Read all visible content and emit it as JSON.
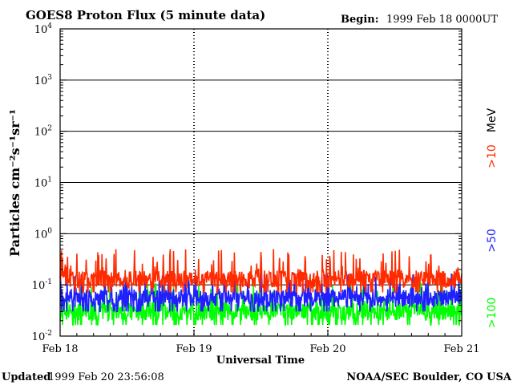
{
  "header": {
    "title": "GOES8 Proton Flux (5 minute data)",
    "begin_label": "Begin:",
    "begin_value": "1999 Feb 18 0000UT"
  },
  "footer": {
    "updated_label": "Updated",
    "updated_value": "1999 Feb 20 23:56:08",
    "credit": "NOAA/SEC Boulder, CO USA"
  },
  "chart_data": {
    "type": "line",
    "title": "GOES8 Proton Flux (5 minute data)",
    "xlabel": "Universal Time",
    "ylabel": "Particles cm⁻²s⁻¹sr⁻¹",
    "y_scale": "log",
    "ylim": [
      0.01,
      10000
    ],
    "y_ticks": [
      {
        "base": "10",
        "exp": "-2"
      },
      {
        "base": "10",
        "exp": "-1"
      },
      {
        "base": "10",
        "exp": "0"
      },
      {
        "base": "10",
        "exp": "1"
      },
      {
        "base": "10",
        "exp": "2"
      },
      {
        "base": "10",
        "exp": "3"
      },
      {
        "base": "10",
        "exp": "4"
      }
    ],
    "x_ticks": [
      "Feb 18",
      "Feb 19",
      "Feb 20",
      "Feb 21"
    ],
    "xlim_days": [
      0,
      3
    ],
    "grid": true,
    "legend_position": "right",
    "series": [
      {
        "name": ">10 MeV",
        "legend_label": ">10",
        "unit_label": "MeV",
        "color": "#ff2a00",
        "typical": 0.13,
        "spike_max": 0.5
      },
      {
        "name": ">50",
        "legend_label": ">50",
        "color": "#2020ff",
        "typical": 0.055,
        "spike_max": 0.17
      },
      {
        "name": ">100",
        "legend_label": ">100",
        "color": "#00ff00",
        "typical": 0.03,
        "spike_max": 0.11
      }
    ]
  }
}
